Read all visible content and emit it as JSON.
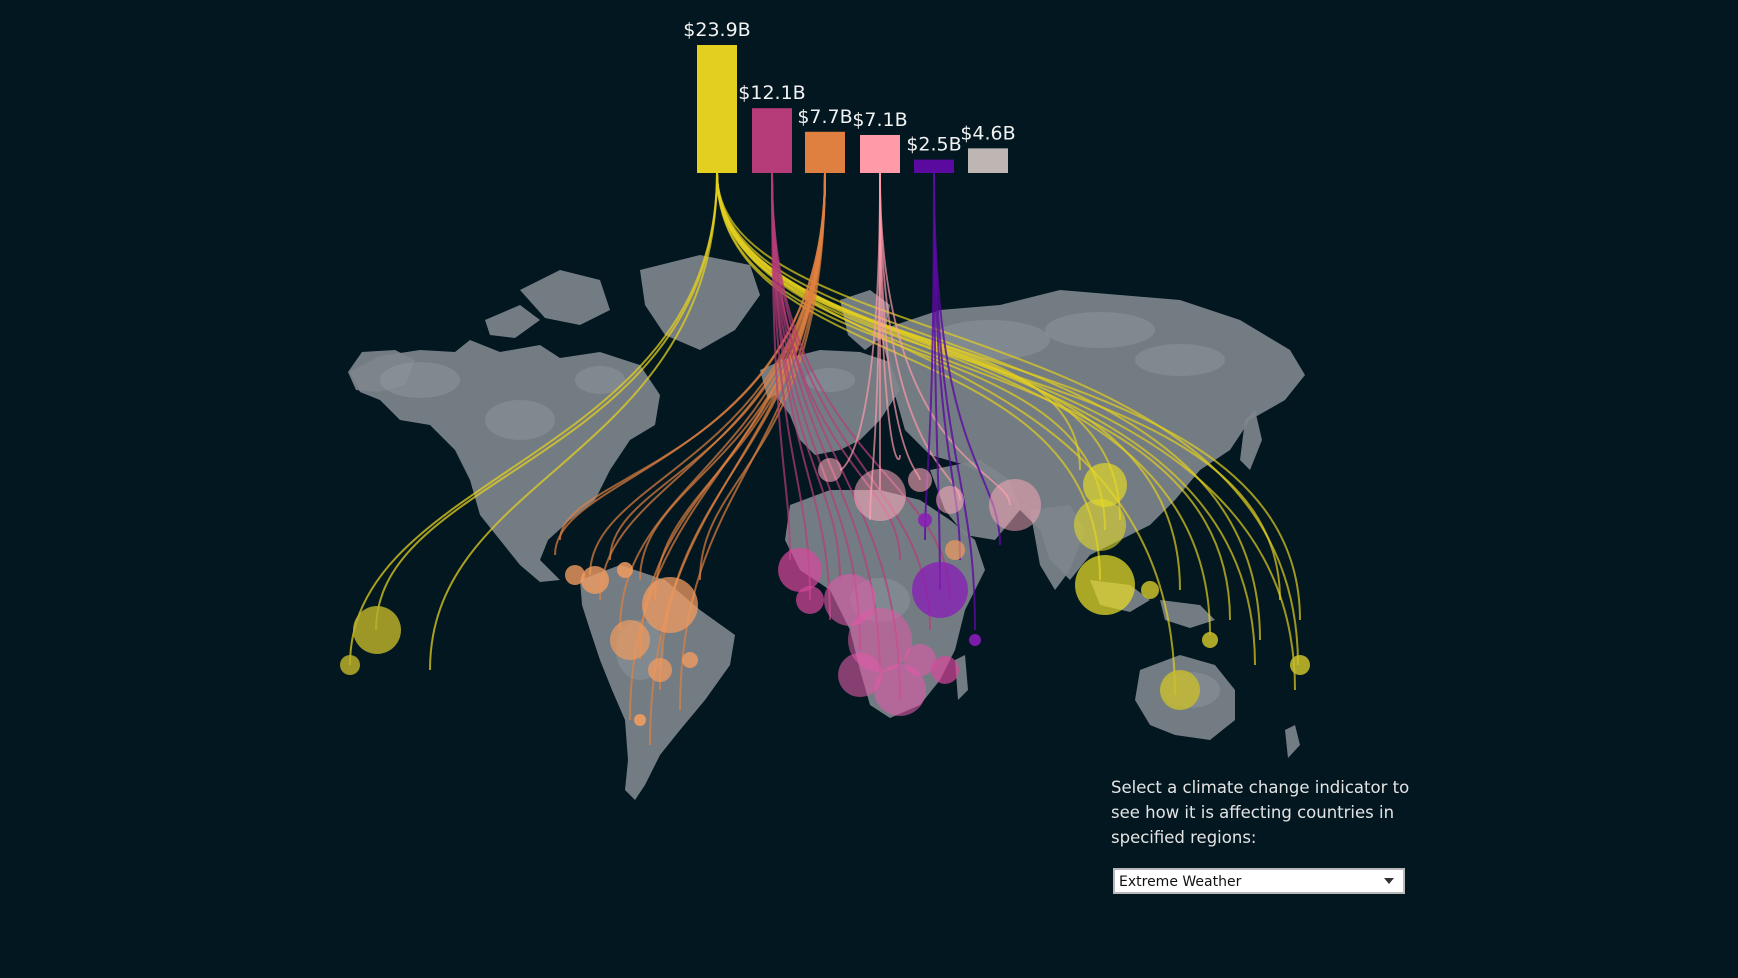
{
  "chart_data": {
    "type": "bar",
    "categories": [
      "",
      "",
      "",
      "",
      "",
      ""
    ],
    "values": [
      23.9,
      12.1,
      7.7,
      7.1,
      2.5,
      4.6
    ],
    "labels": [
      "$23.9B",
      "$12.1B",
      "$7.7B",
      "$7.1B",
      "$2.5B",
      "$4.6B"
    ],
    "colors": [
      "#e3cf1f",
      "#b53c78",
      "#e08040",
      "#ff9aa9",
      "#5b0aa0",
      "#bdb6b2"
    ],
    "unit": "$B",
    "ylim": [
      0,
      23.9
    ]
  },
  "map": {
    "land_color": "#7e858c",
    "border_color": "#c5cbd0",
    "background": "#021720"
  },
  "control": {
    "prompt": "Select a climate change indicator to see how it is affecting countries in specified regions:",
    "selected": "Extreme Weather"
  }
}
